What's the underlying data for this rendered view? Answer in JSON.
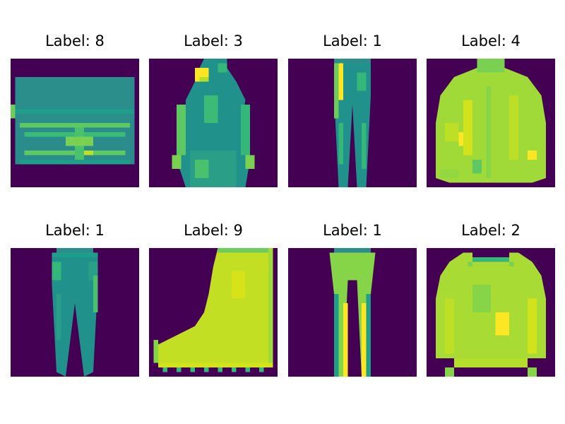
{
  "colors": {
    "background": "#440154",
    "low": "#31688e",
    "mid": "#35b779",
    "high": "#b5de2b",
    "peak": "#fde725"
  },
  "panels": [
    {
      "title": "Label: 8",
      "item": "bag",
      "icon": "bag-icon"
    },
    {
      "title": "Label: 3",
      "item": "dress",
      "icon": "dress-icon"
    },
    {
      "title": "Label: 1",
      "item": "trouser",
      "icon": "trouser-icon"
    },
    {
      "title": "Label: 4",
      "item": "coat",
      "icon": "coat-icon"
    },
    {
      "title": "Label: 1",
      "item": "trouser",
      "icon": "trouser-icon"
    },
    {
      "title": "Label: 9",
      "item": "ankle-boot",
      "icon": "ankle-boot-icon"
    },
    {
      "title": "Label: 1",
      "item": "trouser",
      "icon": "trouser-icon"
    },
    {
      "title": "Label: 2",
      "item": "pullover",
      "icon": "pullover-icon"
    }
  ]
}
